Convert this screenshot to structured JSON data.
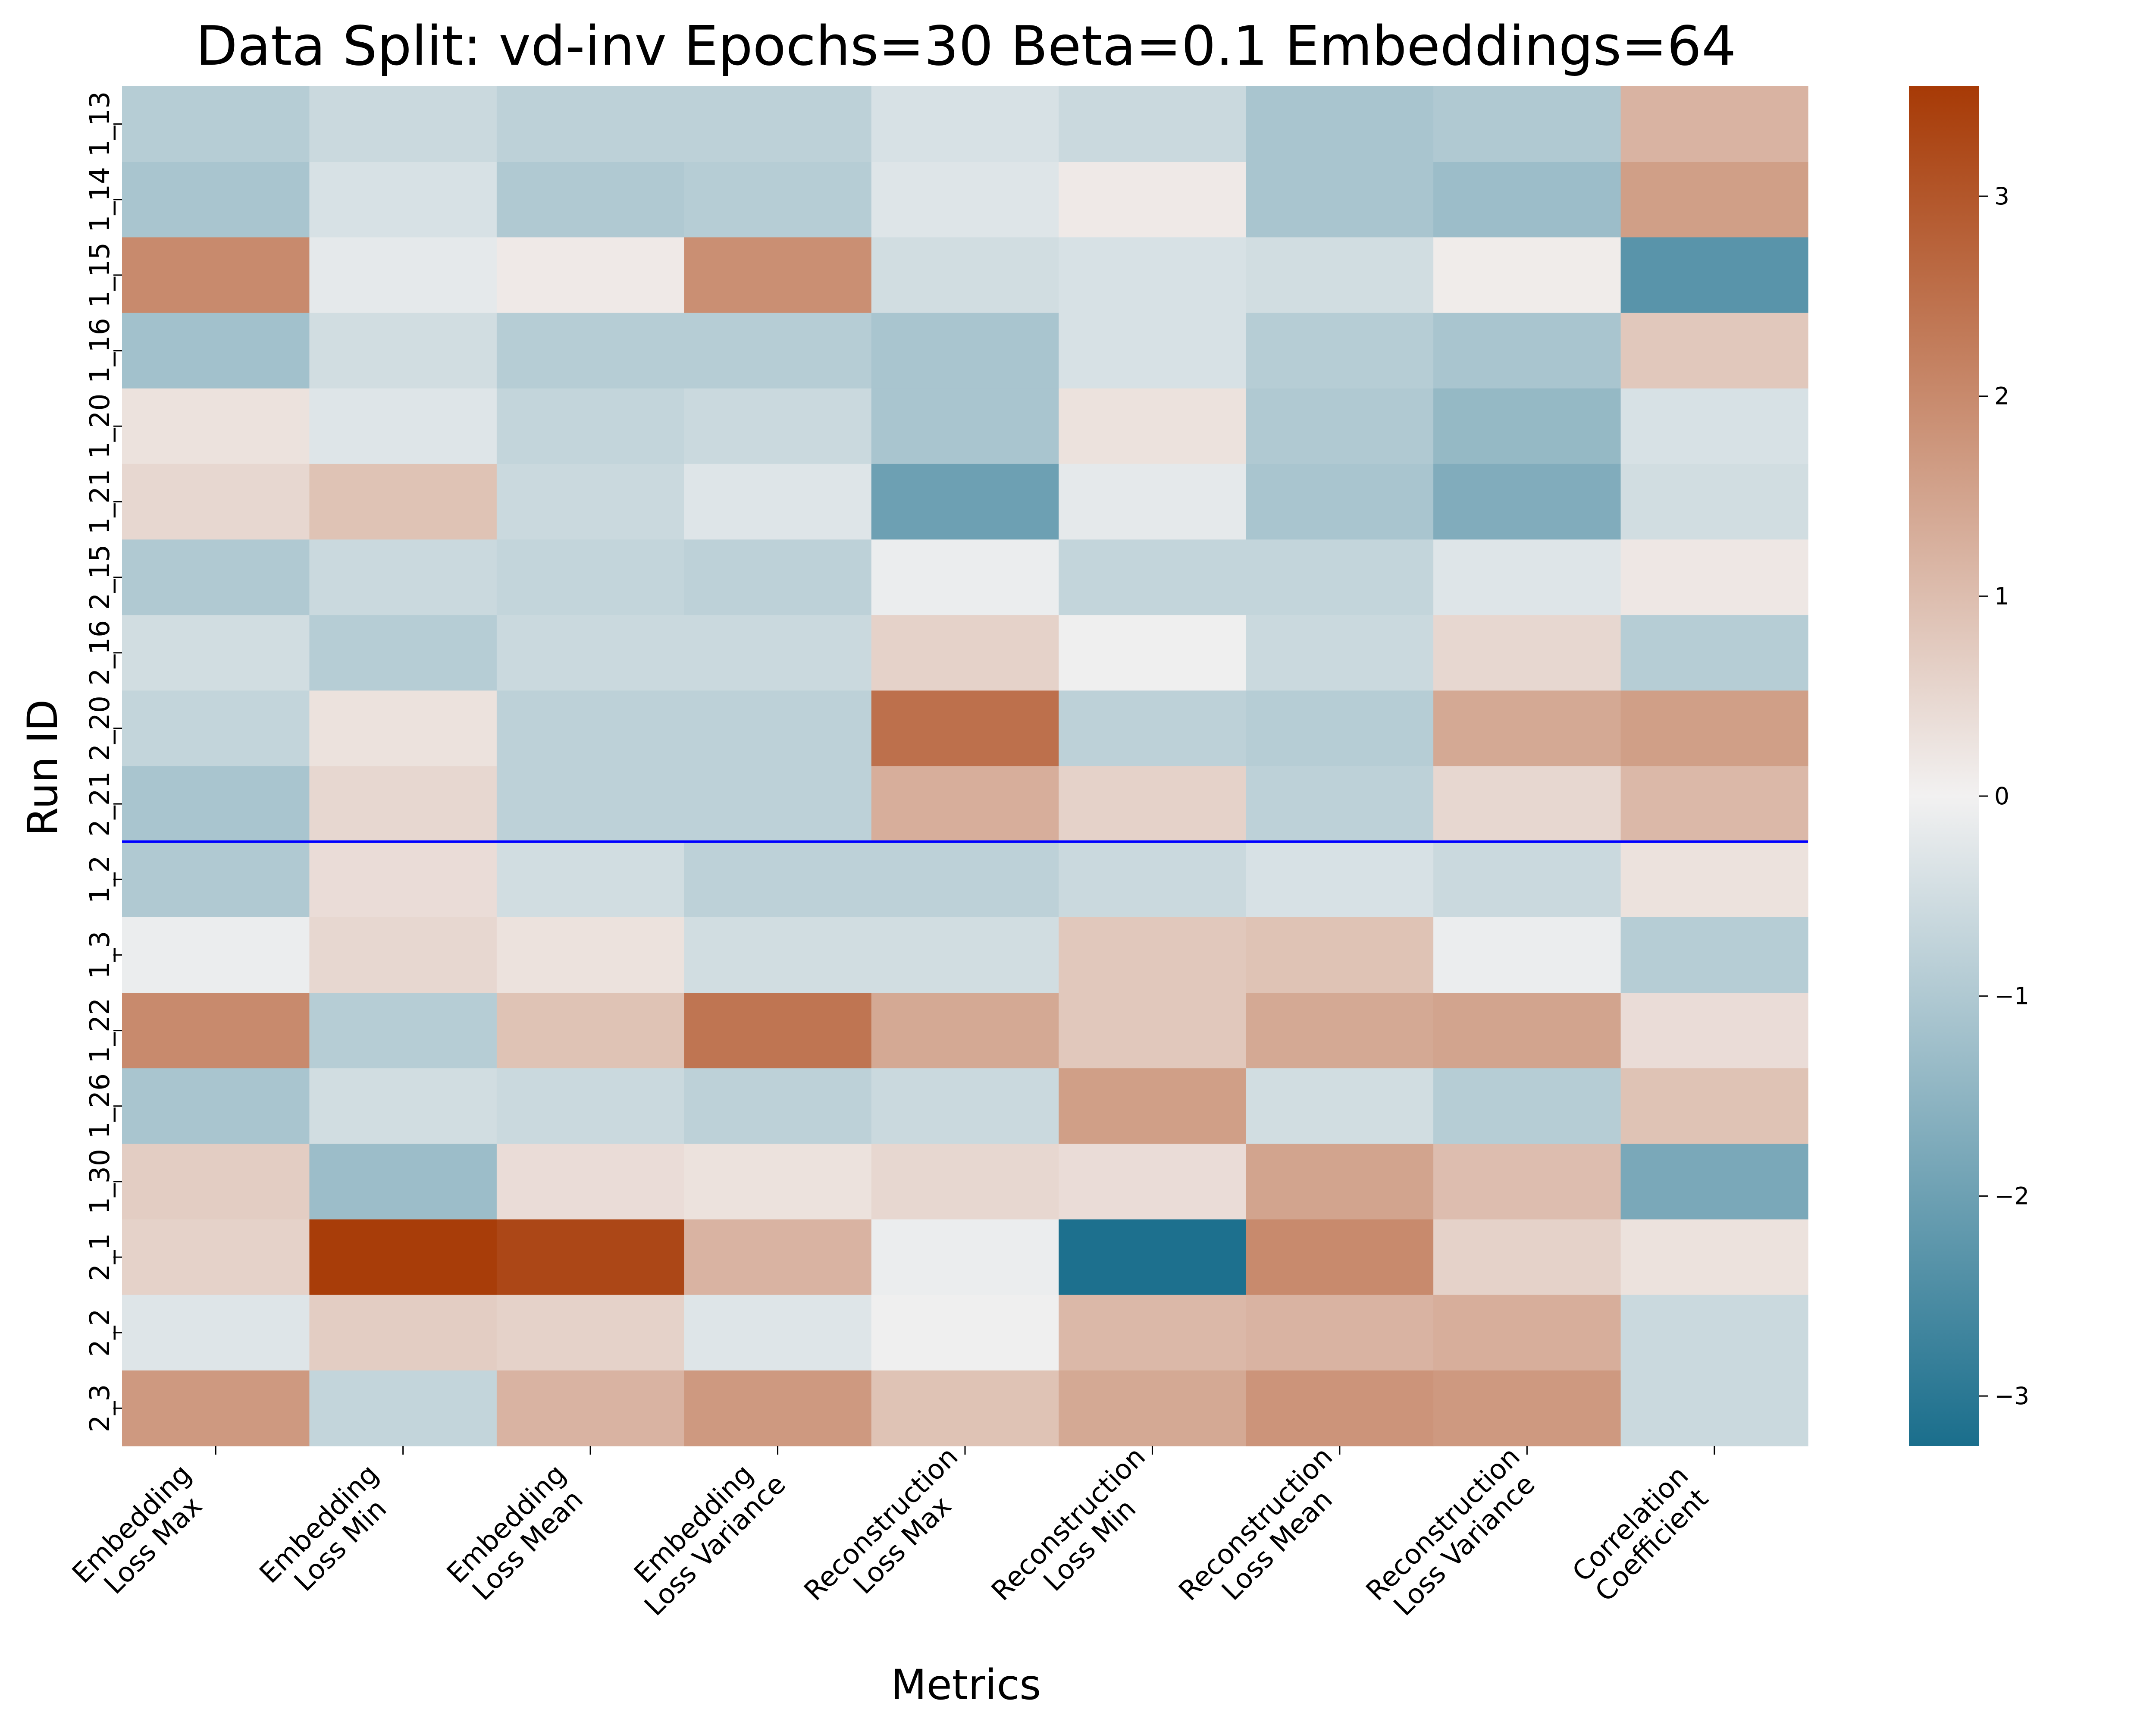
{
  "chart_data": {
    "type": "heatmap",
    "title": "Data Split: vd-inv Epochs=30 Beta=0.1 Embeddings=64",
    "xlabel": "Metrics",
    "ylabel": "Run ID",
    "x_categories": [
      [
        "Embedding",
        "Loss Max"
      ],
      [
        "Embedding",
        "Loss Min"
      ],
      [
        "Embedding",
        "Loss Mean"
      ],
      [
        "Embedding",
        "Loss Variance"
      ],
      [
        "Reconstruction",
        "Loss Max"
      ],
      [
        "Reconstruction",
        "Loss Min"
      ],
      [
        "Reconstruction",
        "Loss Mean"
      ],
      [
        "Reconstruction",
        "Loss Variance"
      ],
      [
        "Correlation",
        "Coefficient"
      ]
    ],
    "y_categories": [
      "1_13",
      "1_14",
      "1_15",
      "1_16",
      "1_20",
      "1_21",
      "2_15",
      "2_16",
      "2_20",
      "2_21",
      "1_2",
      "1_3",
      "1_22",
      "1_26",
      "1_30",
      "2_1",
      "2_2",
      "2_3"
    ],
    "values": [
      [
        -0.9,
        -0.6,
        -0.8,
        -0.8,
        -0.4,
        -0.6,
        -1.1,
        -1.0,
        1.2
      ],
      [
        -1.1,
        -0.4,
        -1.0,
        -0.9,
        -0.3,
        0.15,
        -1.1,
        -1.3,
        1.6
      ],
      [
        2.0,
        -0.2,
        0.15,
        1.9,
        -0.5,
        -0.4,
        -0.5,
        0.1,
        -2.3
      ],
      [
        -1.2,
        -0.5,
        -0.9,
        -0.9,
        -1.1,
        -0.4,
        -0.9,
        -1.1,
        0.8
      ],
      [
        0.3,
        -0.3,
        -0.7,
        -0.6,
        -1.1,
        0.3,
        -1.0,
        -1.4,
        -0.4
      ],
      [
        0.5,
        0.9,
        -0.6,
        -0.3,
        -2.0,
        -0.2,
        -1.1,
        -1.7,
        -0.5
      ],
      [
        -1.0,
        -0.6,
        -0.7,
        -0.8,
        -0.1,
        -0.7,
        -0.7,
        -0.3,
        0.2
      ],
      [
        -0.5,
        -0.9,
        -0.6,
        -0.6,
        0.6,
        -0.05,
        -0.6,
        0.5,
        -0.9
      ],
      [
        -0.7,
        0.3,
        -0.8,
        -0.8,
        2.5,
        -0.8,
        -0.9,
        1.4,
        1.6
      ],
      [
        -1.1,
        0.5,
        -0.8,
        -0.8,
        1.3,
        0.6,
        -0.8,
        0.5,
        1.1
      ],
      [
        -1.0,
        0.4,
        -0.5,
        -0.8,
        -0.8,
        -0.6,
        -0.4,
        -0.6,
        0.3
      ],
      [
        -0.1,
        0.5,
        0.3,
        -0.5,
        -0.5,
        0.8,
        0.9,
        -0.1,
        -0.9
      ],
      [
        2.0,
        -0.9,
        0.9,
        2.4,
        1.4,
        0.8,
        1.4,
        1.5,
        0.4
      ],
      [
        -1.1,
        -0.5,
        -0.6,
        -0.8,
        -0.6,
        1.6,
        -0.5,
        -0.9,
        0.9
      ],
      [
        0.7,
        -1.3,
        0.4,
        0.3,
        0.5,
        0.4,
        1.5,
        1.0,
        -1.8
      ],
      [
        0.6,
        3.5,
        3.3,
        1.2,
        -0.1,
        -3.2,
        2.0,
        0.6,
        0.3
      ],
      [
        -0.3,
        0.7,
        0.6,
        -0.3,
        -0.05,
        1.1,
        1.2,
        1.3,
        -0.6
      ],
      [
        1.7,
        -0.7,
        1.2,
        1.7,
        0.9,
        1.4,
        1.8,
        1.7,
        -0.6
      ]
    ],
    "colorbar": {
      "vmin": -3.25,
      "vmax": 3.55,
      "ticks": [
        -3,
        -2,
        -1,
        0,
        1,
        2,
        3
      ],
      "tick_labels": [
        "−3",
        "−2",
        "−1",
        "0",
        "1",
        "2",
        "3"
      ],
      "low_color": "#1a6e8c",
      "mid_color": "#f2f1f1",
      "high_color": "#a73a06"
    },
    "separator_after_row": "2_21",
    "separator_color": "#0000ff",
    "grid": false,
    "legend": "colorbar right"
  }
}
